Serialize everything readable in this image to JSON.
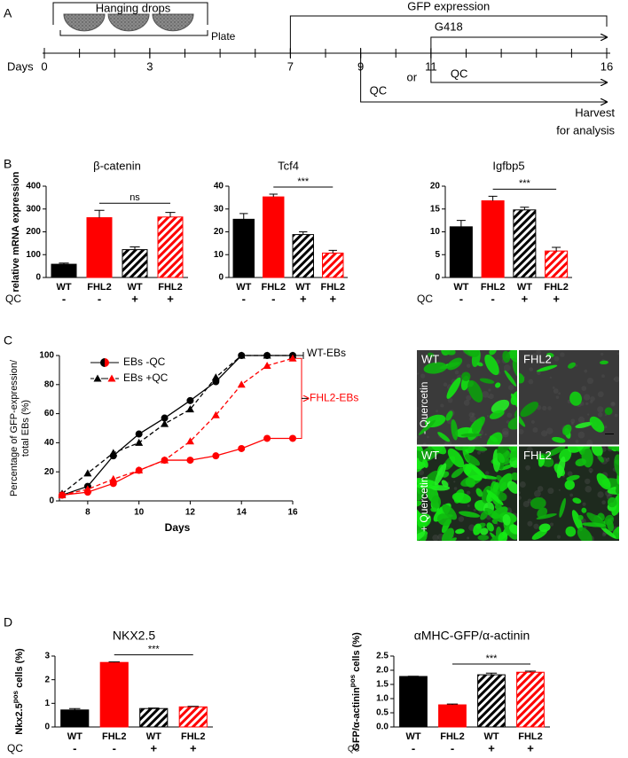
{
  "panel_labels": [
    "A",
    "B",
    "C",
    "D"
  ],
  "timeline": {
    "axis_label": "Days",
    "xlim": [
      0,
      16
    ],
    "ticks": [
      0,
      3,
      7,
      9,
      11,
      16
    ],
    "hanging_drops": "Hanging drops",
    "plate": "Plate",
    "gfp_expression": "GFP expression",
    "g418": "G418",
    "qc": [
      "QC",
      "QC"
    ],
    "or": "or",
    "harvest": [
      "Harvest",
      "for analysis"
    ]
  },
  "chart_data": [
    {
      "type": "bar",
      "title": "β-catenin",
      "y_label": [
        "relative mRNA expression"
      ],
      "categories": [
        "WT",
        "FHL2",
        "WT",
        "FHL2"
      ],
      "group_label": "QC",
      "groups": [
        "-",
        "-",
        "+",
        "+"
      ],
      "values": [
        58,
        262,
        122,
        265
      ],
      "errors": [
        5,
        32,
        12,
        20
      ],
      "colors": [
        "#000000",
        "#ff0000",
        "#000000",
        "#ff0000"
      ],
      "hatched": [
        false,
        false,
        true,
        true
      ],
      "ylim": [
        0,
        400
      ],
      "yticks": [
        0,
        100,
        200,
        300,
        400
      ],
      "annotation": "ns"
    },
    {
      "type": "bar",
      "title": "Tcf4",
      "categories": [
        "WT",
        "FHL2",
        "WT",
        "FHL2"
      ],
      "group_label": "QC",
      "groups": [
        "-",
        "-",
        "+",
        "+"
      ],
      "values": [
        25.5,
        35.3,
        18.8,
        10.7
      ],
      "errors": [
        2.5,
        1.2,
        1.2,
        1.2
      ],
      "colors": [
        "#000000",
        "#ff0000",
        "#000000",
        "#ff0000"
      ],
      "hatched": [
        false,
        false,
        true,
        true
      ],
      "ylim": [
        0,
        40
      ],
      "yticks": [
        0,
        10,
        20,
        30,
        40
      ],
      "annotation": "***"
    },
    {
      "type": "bar",
      "title": "Igfbp5",
      "categories": [
        "WT",
        "FHL2",
        "WT",
        "FHL2"
      ],
      "group_label": "QC",
      "groups": [
        "-",
        "-",
        "+",
        "+"
      ],
      "values": [
        11.1,
        16.8,
        14.8,
        5.8
      ],
      "errors": [
        1.4,
        1.0,
        0.6,
        0.8
      ],
      "colors": [
        "#000000",
        "#ff0000",
        "#000000",
        "#ff0000"
      ],
      "hatched": [
        false,
        false,
        true,
        true
      ],
      "ylim": [
        0,
        20
      ],
      "yticks": [
        0,
        5,
        10,
        15,
        20
      ],
      "annotation": "***"
    },
    {
      "type": "line",
      "y_label": [
        "Percentage of GFP-expression/",
        "total EBs (%)"
      ],
      "x_label": "Days",
      "x": [
        7,
        8,
        9,
        10,
        11,
        12,
        13,
        14,
        15,
        16
      ],
      "series": [
        {
          "color": "#000000",
          "dash": false,
          "marker": "circle",
          "values": [
            4,
            10,
            31,
            46,
            57,
            69,
            82,
            100,
            100,
            100
          ]
        },
        {
          "color": "#000000",
          "dash": true,
          "marker": "triangle",
          "values": [
            5,
            19,
            33,
            40,
            53,
            63,
            85,
            100,
            100,
            100
          ]
        },
        {
          "color": "#ff0000",
          "dash": false,
          "marker": "circle",
          "values": [
            4,
            6,
            12,
            21,
            28,
            28,
            31,
            36,
            43,
            43
          ]
        },
        {
          "color": "#ff0000",
          "dash": true,
          "marker": "triangle",
          "values": [
            4,
            8,
            15,
            21,
            28,
            41,
            59,
            80,
            93,
            98
          ]
        }
      ],
      "legend": [
        "EBs -QC",
        "EBs +QC"
      ],
      "group_labels": [
        "WT-EBs",
        "FHL2-EBs"
      ],
      "xlim": [
        7,
        16
      ],
      "xticks": [
        8,
        10,
        12,
        14,
        16
      ],
      "ylim": [
        0,
        100
      ],
      "yticks": [
        0,
        20,
        40,
        60,
        80,
        100
      ]
    },
    {
      "type": "bar",
      "title": "NKX2.5",
      "y_label": [
        "Nkx2.5",
        "pos",
        " cells (%)"
      ],
      "categories": [
        "WT",
        "FHL2",
        "WT",
        "FHL2"
      ],
      "group_label": "QC",
      "groups": [
        "-",
        "-",
        "+",
        "+"
      ],
      "values": [
        0.72,
        2.73,
        0.78,
        0.85
      ],
      "errors": [
        0.06,
        0.02,
        0.02,
        0.02
      ],
      "colors": [
        "#000000",
        "#ff0000",
        "#000000",
        "#ff0000"
      ],
      "hatched": [
        false,
        false,
        true,
        true
      ],
      "ylim": [
        0,
        3
      ],
      "yticks": [
        0,
        1,
        2,
        3
      ],
      "annotation": "***"
    },
    {
      "type": "bar",
      "title": "αMHC-GFP/α-actinin",
      "y_label": [
        "GFP/α-actinin",
        "pos",
        " cells (%)"
      ],
      "categories": [
        "WT",
        "FHL2",
        "WT",
        "FHL2"
      ],
      "group_label": "QC",
      "groups": [
        "-",
        "-",
        "+",
        "+"
      ],
      "values": [
        1.78,
        0.78,
        1.84,
        1.93
      ],
      "errors": [
        0.01,
        0.03,
        0.06,
        0.04
      ],
      "colors": [
        "#000000",
        "#ff0000",
        "#000000",
        "#ff0000"
      ],
      "hatched": [
        false,
        false,
        true,
        true
      ],
      "ylim": [
        0,
        2.5
      ],
      "yticks": [
        {
          "value": 0,
          "label": "0.0"
        },
        {
          "value": 0.5,
          "label": "0.5"
        },
        {
          "value": 1,
          "label": "1.0"
        },
        {
          "value": 1.5,
          "label": "1.5"
        },
        {
          "value": 2,
          "label": "2.0"
        },
        {
          "value": 2.5,
          "label": "2.5"
        }
      ],
      "annotation": "***"
    }
  ],
  "micrographs": {
    "labels": [
      "WT",
      "FHL2",
      "WT",
      "FHL2"
    ],
    "rows": [
      "- Quercetin",
      "+ Quercetin"
    ]
  }
}
